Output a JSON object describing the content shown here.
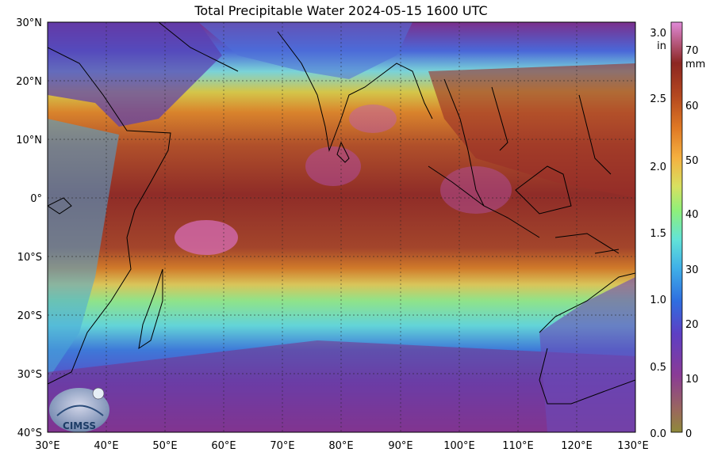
{
  "title": "Total Precipitable Water  2024-05-15 1600 UTC",
  "lat_labels": [
    "30°N",
    "20°N",
    "10°N",
    "0°",
    "10°S",
    "20°S",
    "30°S",
    "40°S"
  ],
  "lon_labels": [
    "30°E",
    "40°E",
    "50°E",
    "60°E",
    "70°E",
    "80°E",
    "90°E",
    "100°E",
    "110°E",
    "120°E",
    "130°E"
  ],
  "colorbar": {
    "inch_unit": "in",
    "mm_unit": "mm",
    "inch_ticks": [
      "3.0",
      "2.5",
      "2.0",
      "1.5",
      "1.0",
      "0.5",
      "0.0"
    ],
    "mm_ticks": [
      "70",
      "60",
      "50",
      "40",
      "30",
      "20",
      "10",
      "0"
    ]
  },
  "logo_text": "CIMSS",
  "colors": {
    "very_moist": "#9b3a2a",
    "moist": "#d07a2a",
    "medium": "#8fe38a",
    "dry": "#3e78d8",
    "very_dry": "#7a2f8a",
    "peak": "#d86fc0"
  }
}
